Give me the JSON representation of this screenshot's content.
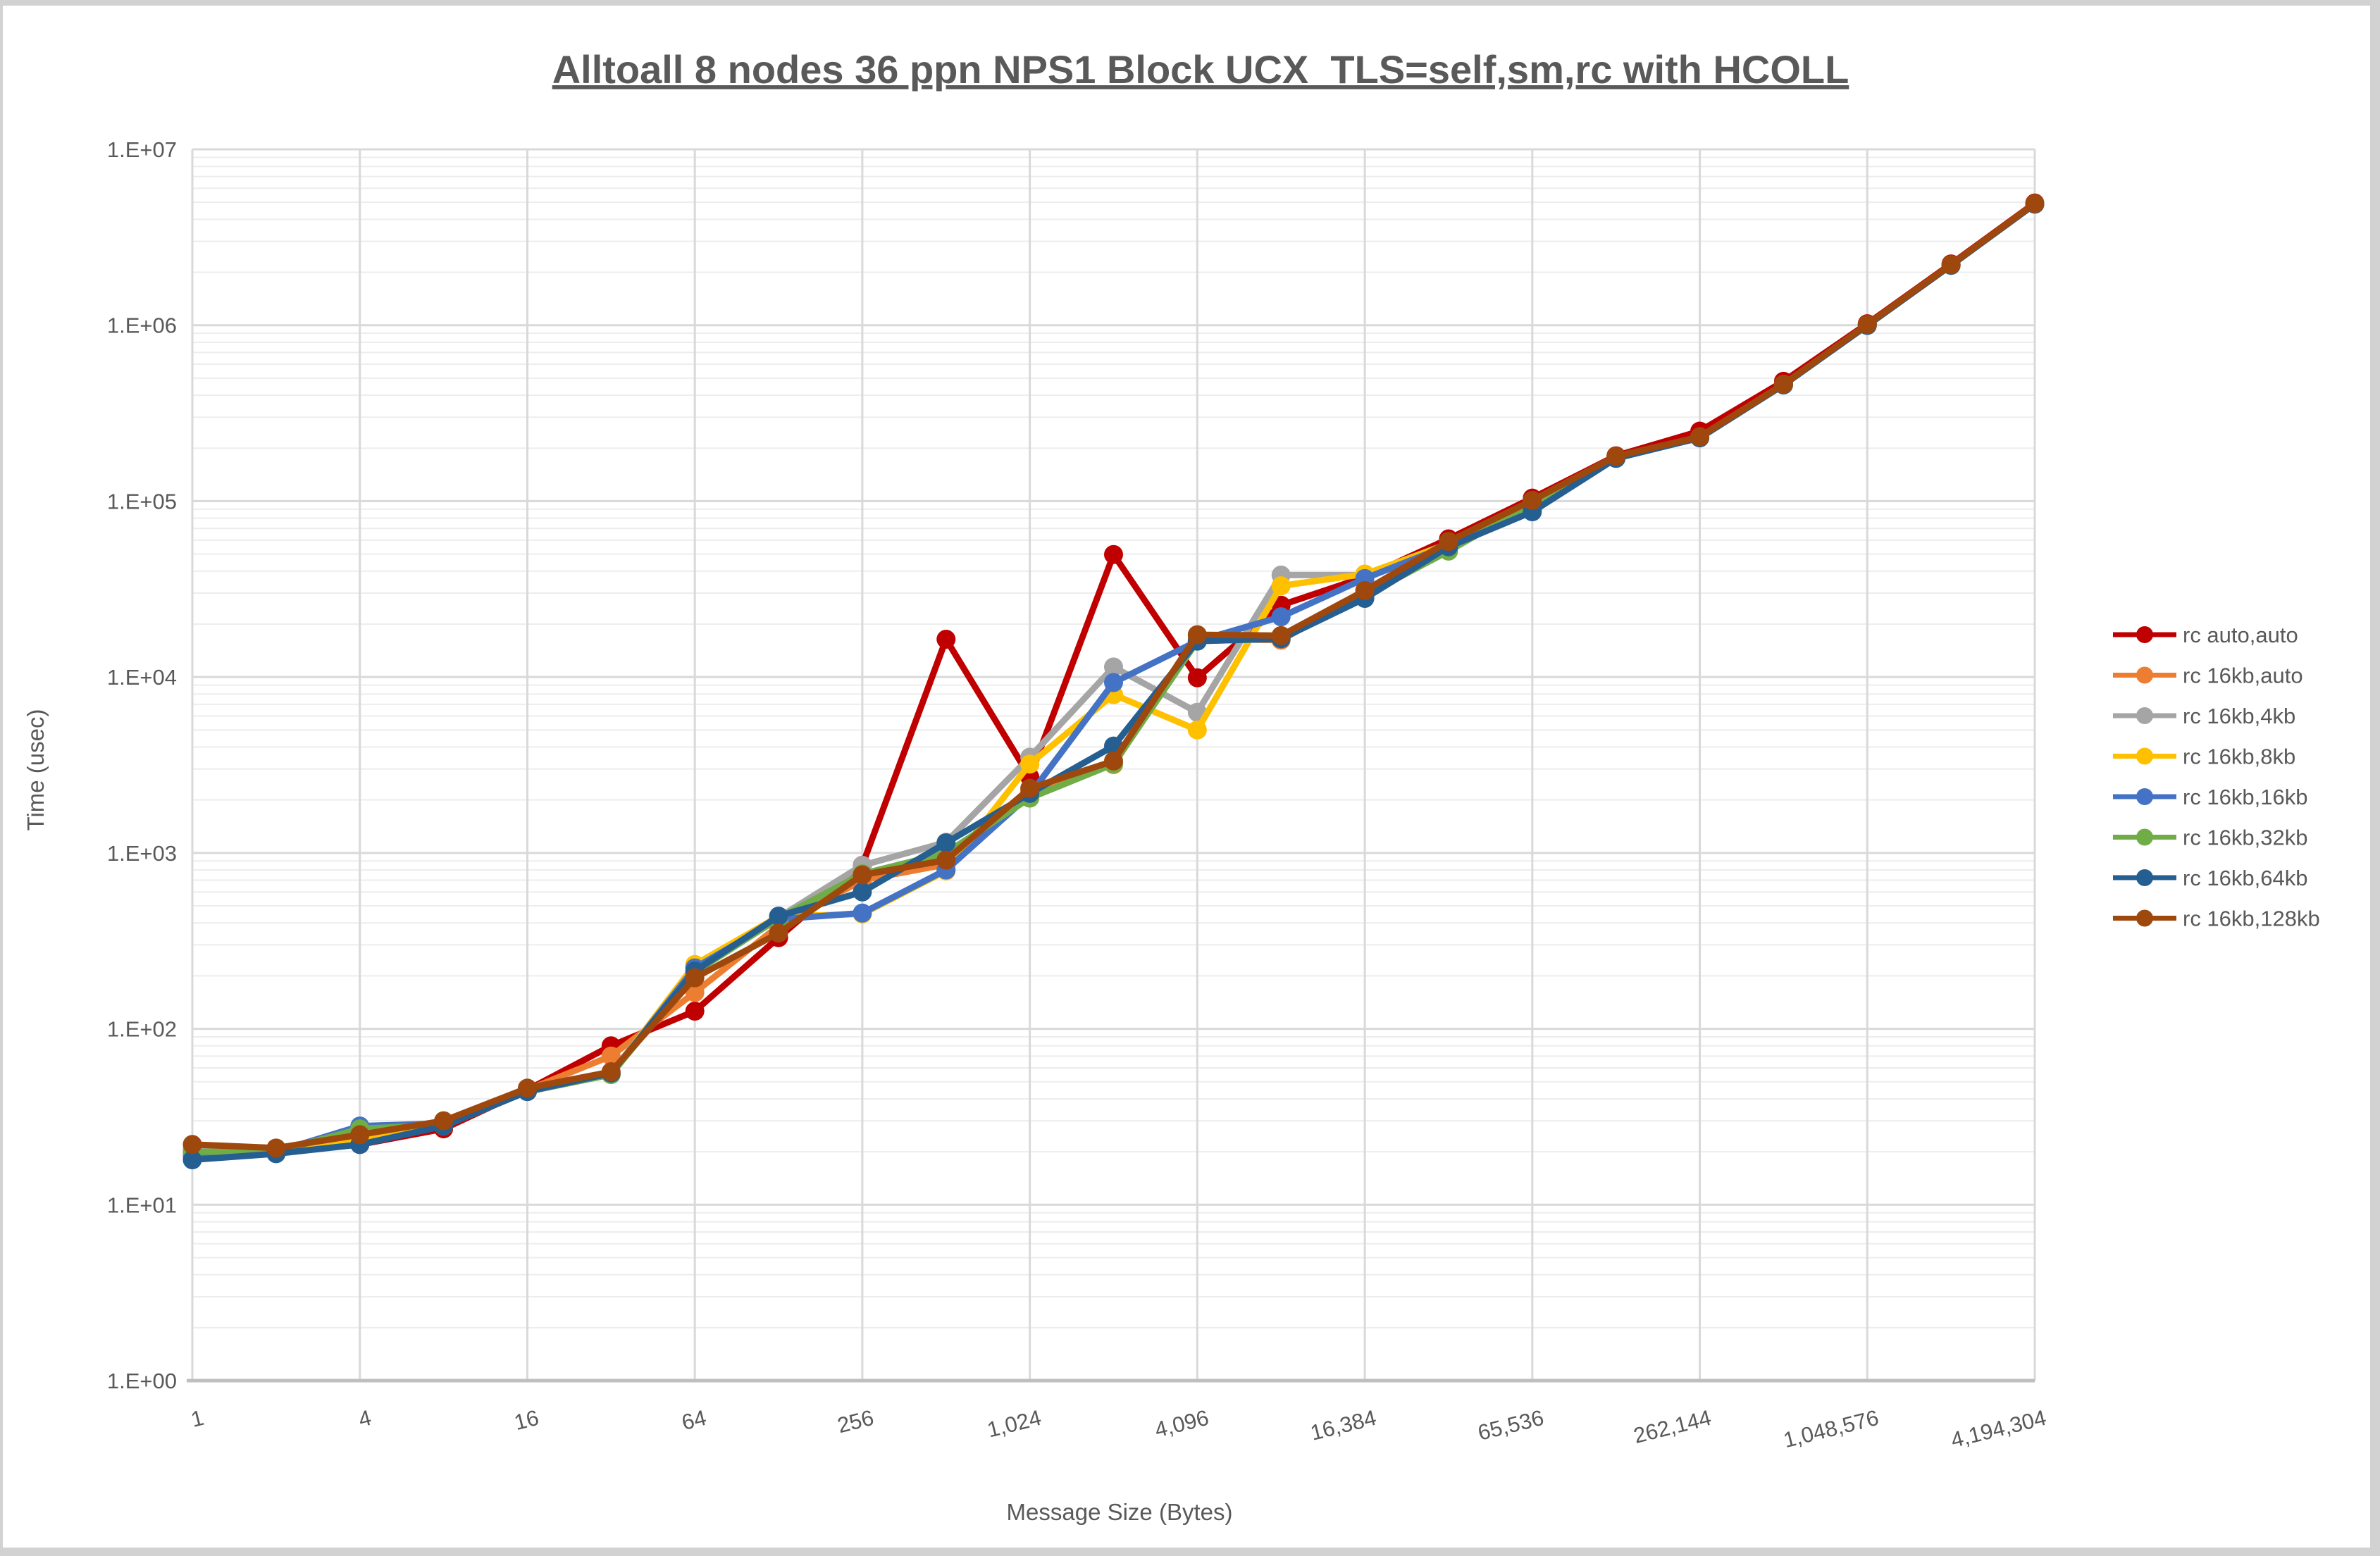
{
  "frame": {
    "title": "Alltoall 8 nodes 36 ppn NPS1 Block UCX_TLS=self,sm,rc with HCOLL",
    "y_axis_title": "Time (usec)",
    "x_axis_title": "Message Size (Bytes)"
  },
  "chart_data": {
    "type": "line",
    "x_scale": "log2",
    "y_scale": "log10",
    "xlabel": "Message Size (Bytes)",
    "ylabel": "Time (usec)",
    "xlim": [
      1,
      4194304
    ],
    "ylim": [
      1,
      10000000
    ],
    "grid": "major+minor",
    "legend_position": "right",
    "x": [
      1,
      2,
      4,
      8,
      16,
      32,
      64,
      128,
      256,
      512,
      1024,
      2048,
      4096,
      8192,
      16384,
      32768,
      65536,
      131072,
      262144,
      524288,
      1048576,
      2097152,
      4194304
    ],
    "x_tick_values": [
      1,
      4,
      16,
      64,
      256,
      1024,
      4096,
      16384,
      65536,
      262144,
      1048576,
      4194304
    ],
    "x_tick_labels": [
      "1",
      "4",
      "16",
      "64",
      "256",
      "1,024",
      "4,096",
      "16,384",
      "65,536",
      "262,144",
      "1,048,576",
      "4,194,304"
    ],
    "y_tick_labels": [
      "1.E+00",
      "1.E+01",
      "1.E+02",
      "1.E+03",
      "1.E+04",
      "1.E+05",
      "1.E+06",
      "1.E+07"
    ],
    "series": [
      {
        "name": "rc auto,auto",
        "color": "#C00000",
        "values": [
          20,
          20,
          22,
          27,
          45,
          80,
          126,
          330,
          850,
          16400,
          2700,
          49700,
          9900,
          25600,
          37000,
          61000,
          104000,
          181000,
          250000,
          480000,
          1020000,
          2230000,
          4950000
        ]
      },
      {
        "name": "rc 16kb,auto",
        "color": "#ED7D31",
        "values": [
          20.5,
          20,
          24.5,
          28,
          45,
          70,
          161,
          385,
          700,
          860,
          2250,
          3180,
          16500,
          16200,
          30000,
          58000,
          100000,
          178000,
          232000,
          462000,
          1000000,
          2200000,
          4900000
        ]
      },
      {
        "name": "rc 16kb,4kb",
        "color": "#A5A5A5",
        "values": [
          20.5,
          20,
          25,
          29,
          45,
          56,
          225,
          430,
          850,
          1150,
          3500,
          11400,
          6300,
          38000,
          38000,
          57500,
          100000,
          178000,
          230000,
          460000,
          1000000,
          2200000,
          4900000
        ]
      },
      {
        "name": "rc 16kb,8kb",
        "color": "#FFC000",
        "values": [
          19.5,
          20,
          24,
          28,
          44,
          55,
          232,
          435,
          450,
          790,
          3200,
          7950,
          5000,
          33000,
          38500,
          57000,
          100000,
          178000,
          230000,
          460000,
          1000000,
          2200000,
          4900000
        ]
      },
      {
        "name": "rc 16kb,16kb",
        "color": "#4472C4",
        "values": [
          19,
          20,
          28,
          29,
          44,
          55,
          222,
          420,
          455,
          800,
          2140,
          9300,
          16000,
          22000,
          36300,
          56000,
          90000,
          176000,
          230000,
          459000,
          1000000,
          2195000,
          4890000
        ]
      },
      {
        "name": "rc 16kb,32kb",
        "color": "#70AD47",
        "values": [
          20,
          20,
          27,
          28.5,
          44,
          55,
          210,
          425,
          760,
          1000,
          2050,
          3200,
          16000,
          16500,
          29000,
          52000,
          97000,
          177000,
          229000,
          458000,
          998000,
          2190000,
          4880000
        ]
      },
      {
        "name": "rc 16kb,64kb",
        "color": "#255E91",
        "values": [
          18,
          19.5,
          22,
          28,
          44,
          56,
          213,
          437,
          600,
          1140,
          2180,
          4050,
          16000,
          16500,
          28000,
          55000,
          87000,
          175000,
          229000,
          458000,
          998000,
          2190000,
          4880000
        ]
      },
      {
        "name": "rc 16kb,128kb",
        "color": "#9E480E",
        "values": [
          22,
          21,
          25,
          30,
          46,
          57,
          195,
          350,
          750,
          910,
          2330,
          3330,
          17400,
          17200,
          31000,
          59000,
          101000,
          180000,
          232000,
          462000,
          1010000,
          2210000,
          4920000
        ]
      }
    ]
  }
}
